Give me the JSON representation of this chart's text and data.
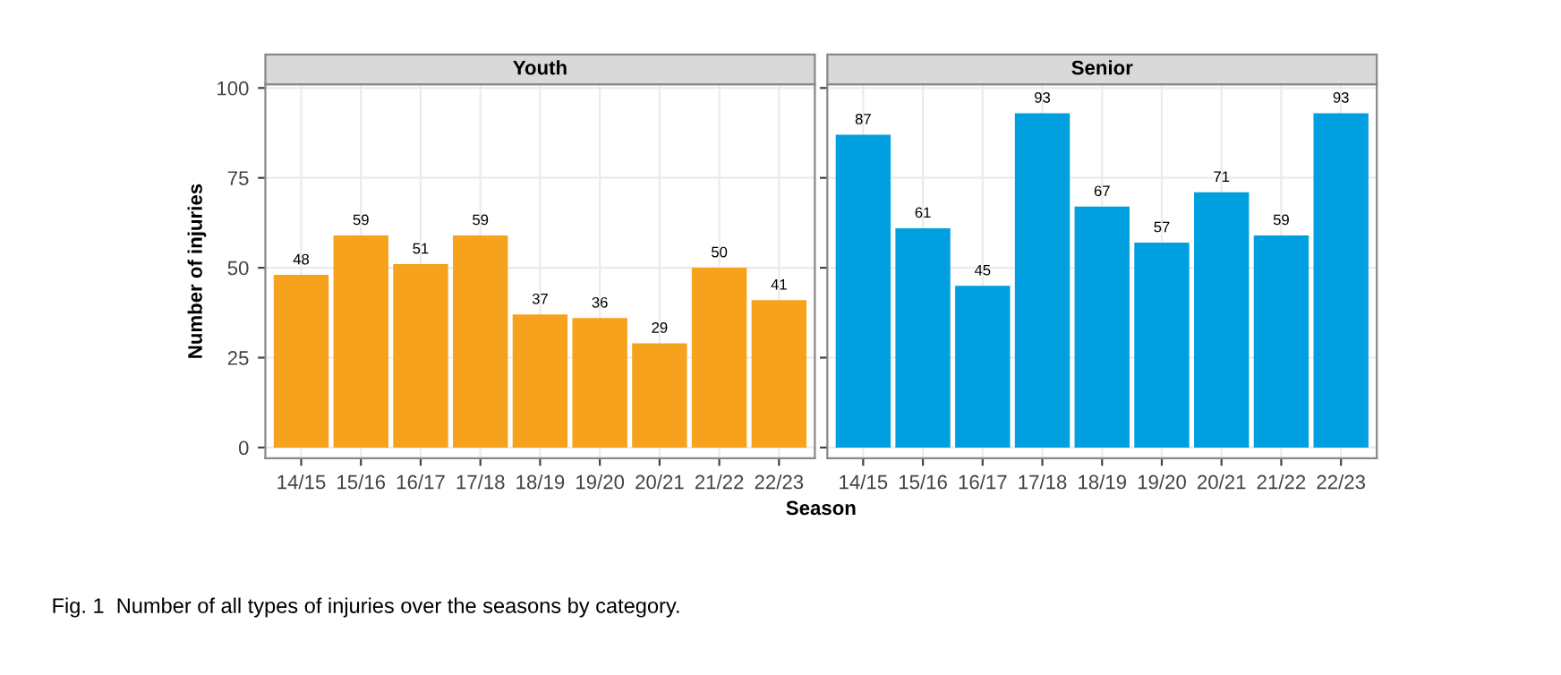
{
  "chart_data": [
    {
      "type": "bar",
      "title": "Youth",
      "ylabel": "Number of injuries",
      "xlabel": "Season",
      "categories": [
        "14/15",
        "15/16",
        "16/17",
        "17/18",
        "18/19",
        "19/20",
        "20/21",
        "21/22",
        "22/23"
      ],
      "values": [
        48,
        59,
        51,
        59,
        37,
        36,
        29,
        50,
        41
      ],
      "color": "#f6a21d",
      "ylim": [
        -3,
        101
      ],
      "yticks": [
        0,
        25,
        50,
        75,
        100
      ],
      "grid": true,
      "data_labels": true,
      "annotations": [
        "Fig. 1  Number of all types of injuries over the seasons by category."
      ]
    },
    {
      "type": "bar",
      "title": "Senior",
      "categories": [
        "14/15",
        "15/16",
        "16/17",
        "17/18",
        "18/19",
        "19/20",
        "20/21",
        "21/22",
        "22/23"
      ],
      "values": [
        87,
        61,
        45,
        93,
        67,
        57,
        71,
        59,
        93
      ],
      "color": "#00a0e0",
      "ylim": [
        -3,
        101
      ],
      "yticks": [
        0,
        25,
        50,
        75,
        100
      ],
      "grid": true,
      "data_labels": true,
      "tick_labels": "x"
    }
  ]
}
